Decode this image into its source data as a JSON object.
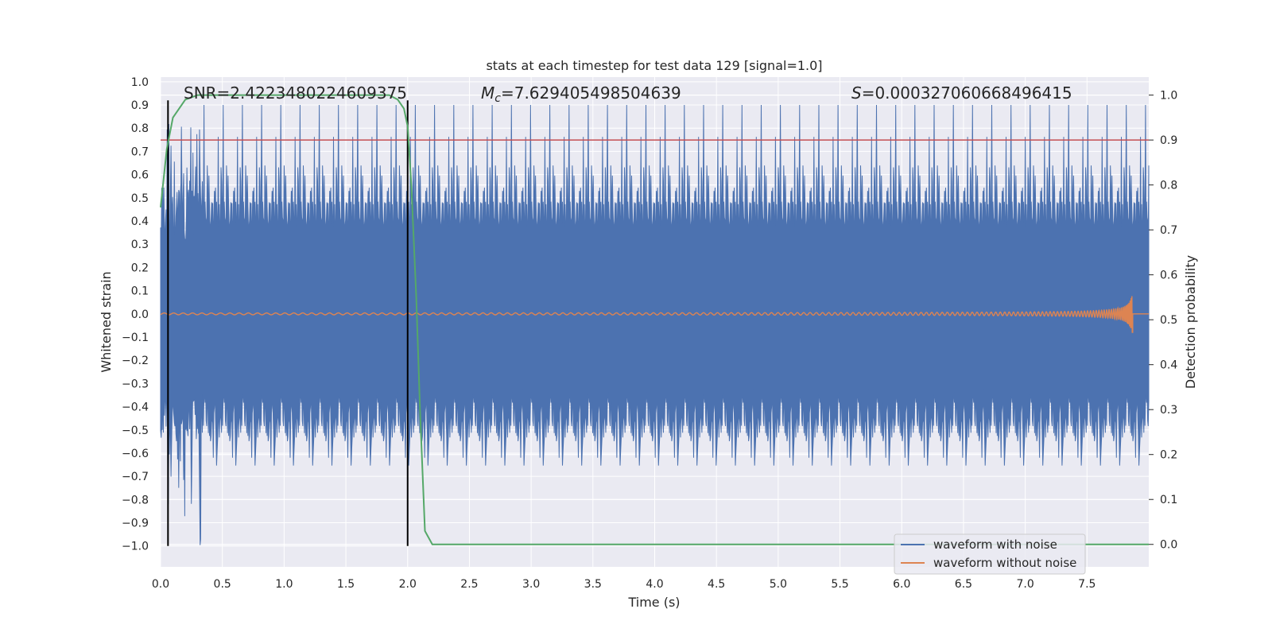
{
  "chart_data": {
    "type": "line",
    "title": "stats at each timestep for test data 129 [signal=1.0]",
    "xlabel": "Time (s)",
    "ylabel": "Whitened strain",
    "y2label": "Detection probability",
    "xlim": [
      0.0,
      8.0
    ],
    "ylim": [
      -1.09,
      1.02
    ],
    "y2lim": [
      -0.05,
      1.04
    ],
    "xticks": [
      0.0,
      0.5,
      1.0,
      1.5,
      2.0,
      2.5,
      3.0,
      3.5,
      4.0,
      4.5,
      5.0,
      5.5,
      6.0,
      6.5,
      7.0,
      7.5
    ],
    "xtick_labels": [
      "0.0",
      "0.5",
      "1.0",
      "1.5",
      "2.0",
      "2.5",
      "3.0",
      "3.5",
      "4.0",
      "4.5",
      "5.0",
      "5.5",
      "6.0",
      "6.5",
      "7.0",
      "7.5"
    ],
    "yticks": [
      1.0,
      0.9,
      0.8,
      0.7,
      0.6,
      0.5,
      0.4,
      0.3,
      0.2,
      0.1,
      0.0,
      -0.1,
      -0.2,
      -0.3,
      -0.4,
      -0.5,
      -0.6,
      -0.7,
      -0.8,
      -0.9,
      -1.0
    ],
    "ytick_labels": [
      "1.0",
      "0.9",
      "0.8",
      "0.7",
      "0.6",
      "0.5",
      "0.4",
      "0.3",
      "0.2",
      "0.1",
      "0.0",
      "−0.1",
      "−0.2",
      "−0.3",
      "−0.4",
      "−0.5",
      "−0.6",
      "−0.7",
      "−0.8",
      "−0.9",
      "−1.0"
    ],
    "y2ticks": [
      1.0,
      0.9,
      0.8,
      0.7,
      0.6,
      0.5,
      0.4,
      0.3,
      0.2,
      0.1,
      0.0
    ],
    "y2tick_labels": [
      "1.0",
      "0.9",
      "0.8",
      "0.7",
      "0.6",
      "0.5",
      "0.4",
      "0.3",
      "0.2",
      "0.1",
      "0.0"
    ],
    "annotations": {
      "snr": "SNR=2.4223480224609375",
      "mc_symbol": "M",
      "mc_sub": "c",
      "mc_value": "=7.629405498504639",
      "s_symbol": "S",
      "s_value": "=0.000327060668496415"
    },
    "threshold": {
      "value": 0.9,
      "axis": "y2",
      "color": "#c44e52"
    },
    "vertical_lines": [
      0.06,
      2.0
    ],
    "detection_probability": {
      "color": "#55a868",
      "points": [
        [
          0.0,
          0.75
        ],
        [
          0.05,
          0.88
        ],
        [
          0.1,
          0.95
        ],
        [
          0.2,
          0.99
        ],
        [
          0.3,
          1.0
        ],
        [
          1.0,
          1.0
        ],
        [
          1.85,
          1.0
        ],
        [
          1.92,
          0.99
        ],
        [
          1.97,
          0.97
        ],
        [
          2.0,
          0.93
        ],
        [
          2.03,
          0.8
        ],
        [
          2.07,
          0.55
        ],
        [
          2.1,
          0.3
        ],
        [
          2.14,
          0.03
        ],
        [
          2.2,
          0.0
        ],
        [
          8.0,
          0.0
        ]
      ]
    },
    "series": [
      {
        "name": "waveform with noise",
        "color": "#4c72b0",
        "noise_amplitude": 0.9
      },
      {
        "name": "waveform without noise",
        "color": "#dd8452",
        "chirp_end": 7.87,
        "peak_amplitude": 0.15
      }
    ],
    "legend": {
      "position": "bottom-right",
      "entries": [
        "waveform with noise",
        "waveform without noise"
      ]
    }
  }
}
